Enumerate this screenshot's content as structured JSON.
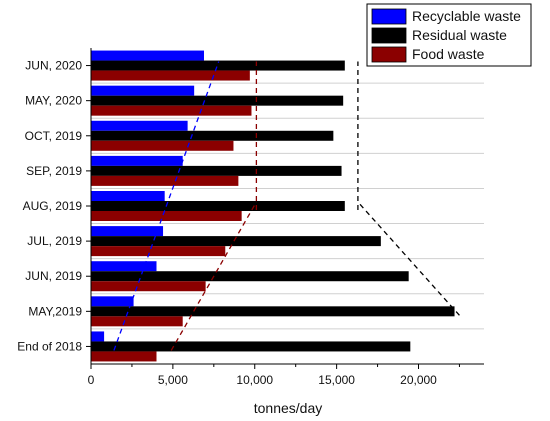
{
  "chart_data": {
    "type": "bar",
    "orientation": "horizontal",
    "categories": [
      "End of 2018",
      "MAY,2019",
      "JUN, 2019",
      "JUL, 2019",
      "AUG, 2019",
      "SEP, 2019",
      "OCT, 2019",
      "MAY, 2020",
      "JUN, 2020"
    ],
    "series": [
      {
        "name": "Recyclable waste",
        "color": "#0000ff",
        "values": [
          800,
          2600,
          4000,
          4400,
          4500,
          5600,
          5900,
          6300,
          6900
        ]
      },
      {
        "name": "Residual waste",
        "color": "#000000",
        "values": [
          19500,
          22200,
          19400,
          17700,
          15500,
          15300,
          14800,
          15400,
          15500
        ]
      },
      {
        "name": "Food waste",
        "color": "#8b0000",
        "values": [
          4000,
          5600,
          7000,
          8200,
          9200,
          9000,
          8700,
          9800,
          9700
        ]
      }
    ],
    "xlabel": "tonnes/day",
    "ylabel": "",
    "xlim": [
      0,
      24000
    ],
    "xticks": [
      0,
      5000,
      10000,
      15000,
      20000
    ],
    "xtick_labels": [
      "0",
      "5,000",
      "10,000",
      "15,000",
      "20,000"
    ],
    "legend_position": "top-right",
    "trend_lines": [
      {
        "series": "Recyclable waste",
        "style": "dashed",
        "color": "#0000ff",
        "from": {
          "x": 1400,
          "category": "End of 2018"
        },
        "to": {
          "x": 7800,
          "category": "JUN, 2020"
        }
      },
      {
        "series": "Food waste",
        "style": "dashed",
        "color": "#8b0000",
        "from": {
          "x": 4900,
          "category": "End of 2018"
        },
        "to": {
          "x": 10100,
          "category": "AUG, 2019"
        }
      },
      {
        "series": "Food waste",
        "style": "dashed",
        "color": "#8b0000",
        "from": {
          "x": 10100,
          "category": "AUG, 2019"
        },
        "to": {
          "x": 10100,
          "category": "JUN, 2020"
        }
      },
      {
        "series": "Residual waste",
        "style": "dashed",
        "color": "#000000",
        "from": {
          "x": 22500,
          "category": "MAY,2019"
        },
        "to": {
          "x": 16300,
          "category": "AUG, 2019"
        }
      },
      {
        "series": "Residual waste",
        "style": "dashed",
        "color": "#000000",
        "from": {
          "x": 16300,
          "category": "AUG, 2019"
        },
        "to": {
          "x": 16300,
          "category": "JUN, 2020"
        }
      }
    ]
  }
}
